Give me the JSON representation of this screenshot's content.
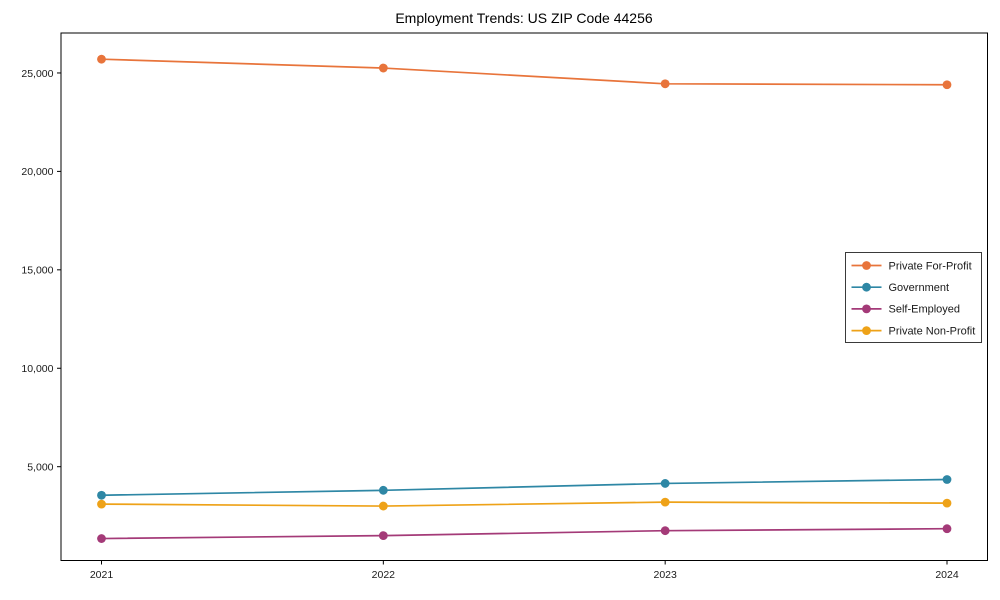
{
  "chart_data": {
    "type": "line",
    "title": "Employment Trends: US ZIP Code 44256",
    "xlabel": "",
    "ylabel": "",
    "categories": [
      "2021",
      "2022",
      "2023",
      "2024"
    ],
    "series": [
      {
        "name": "Private For-Profit",
        "color": "#e8743b",
        "values": [
          25700,
          25250,
          24450,
          24400
        ]
      },
      {
        "name": "Government",
        "color": "#2e87a5",
        "values": [
          3550,
          3800,
          4150,
          4350
        ]
      },
      {
        "name": "Self-Employed",
        "color": "#a43a78",
        "values": [
          1350,
          1500,
          1750,
          1850
        ]
      },
      {
        "name": "Private Non-Profit",
        "color": "#eea218",
        "values": [
          3100,
          3000,
          3200,
          3150
        ]
      }
    ],
    "yticks": [
      5000,
      10000,
      15000,
      20000,
      25000
    ],
    "ytick_labels": [
      "5,000",
      "10,000",
      "15,000",
      "20,000",
      "25,000"
    ],
    "ylim": [
      235,
      27030
    ],
    "grid": false,
    "marker": "circle",
    "legend_position": "center right",
    "axis_color": "#000000",
    "text_color": "#1a1a1a",
    "legend_border_color": "#3a3a3a"
  }
}
